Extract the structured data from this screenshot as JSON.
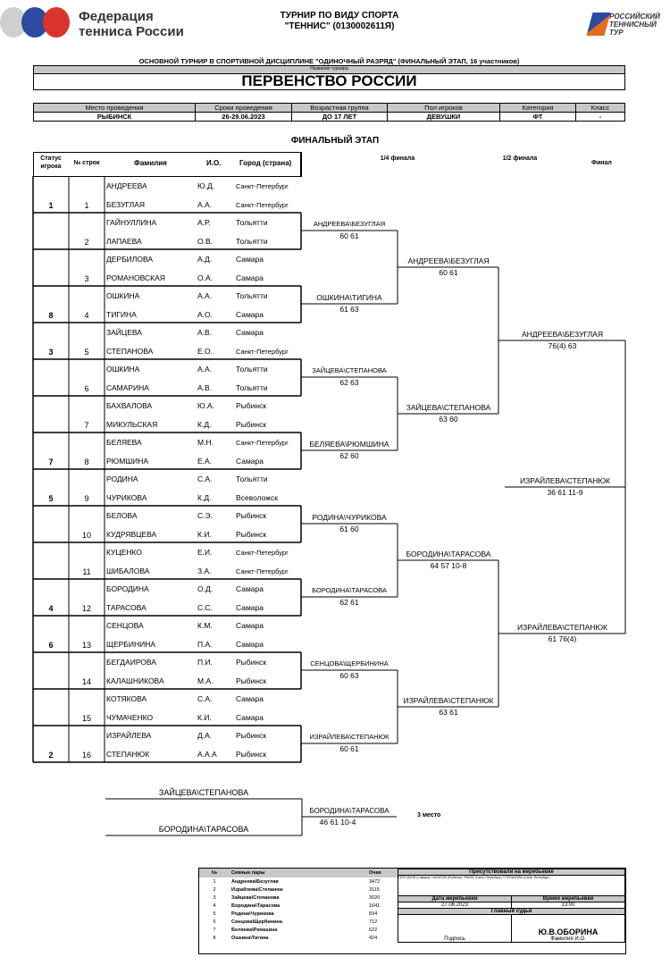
{
  "header": {
    "federation": [
      "Федерация",
      "тенниса России"
    ],
    "title_line1": "ТУРНИР ПО ВИДУ СПОРТА",
    "title_line2": "\"ТЕННИС\" (0130002611Я)",
    "rtt_logo": [
      "РОССИЙСКИЙ",
      "ТЕННИСНЫЙ",
      "ТУР"
    ]
  },
  "subtitle": "ОСНОВНОЙ ТУРНИР В СПОРТИВНОЙ ДИСЦИПЛИНЕ \"ОДИНОЧНЫЙ РАЗРЯД\" (ФИНАЛЬНЫЙ ЭТАП, 16 участников)",
  "tournament_name_label": "Название турнира",
  "tournament_name": "ПЕРВЕНСТВО РОССИИ",
  "info": {
    "headers": [
      "Место проведения",
      "Сроки проведения",
      "Возрастная группа",
      "Пол игроков",
      "Категория",
      "Класс"
    ],
    "values": [
      "РЫБИНСК",
      "26-29.06.2023",
      "ДО 17 ЛЕТ",
      "ДЕВУШКИ",
      "ФТ",
      "-"
    ]
  },
  "stage_title": "ФИНАЛЬНЫЙ ЭТАП",
  "columns": {
    "status": "Статус игрока",
    "row": "№ строк",
    "surname": "Фамилия",
    "initials": "И.О.",
    "city": "Город (страна)",
    "r16": "1/4 финала",
    "sf": "1/2 финала",
    "final": "Финал"
  },
  "pairs": [
    {
      "status": "1",
      "num": "1",
      "p": [
        [
          "АНДРЕЕВА",
          "Ю.Д.",
          "Санкт-Петербург"
        ],
        [
          "БЕЗУГЛАЯ",
          "А.А.",
          "Санкт-Петербург"
        ]
      ]
    },
    {
      "status": "",
      "num": "2",
      "p": [
        [
          "ГАЙНУЛЛИНА",
          "А.Р.",
          "Тольятти"
        ],
        [
          "ЛАПАЕВА",
          "О.В.",
          "Тольятти"
        ]
      ]
    },
    {
      "status": "",
      "num": "3",
      "p": [
        [
          "ДЕРБИЛОВА",
          "А.Д.",
          "Самара"
        ],
        [
          "РОМАНОВСКАЯ",
          "О.А.",
          "Самара"
        ]
      ]
    },
    {
      "status": "8",
      "num": "4",
      "p": [
        [
          "ОШКИНА",
          "А.А.",
          "Тольятти"
        ],
        [
          "ТИГИНА",
          "А.О.",
          "Самара"
        ]
      ]
    },
    {
      "status": "3",
      "num": "5",
      "p": [
        [
          "ЗАЙЦЕВА",
          "А.В.",
          "Самара"
        ],
        [
          "СТЕПАНОВА",
          "Е.О.",
          "Санкт-Петербург"
        ]
      ]
    },
    {
      "status": "",
      "num": "6",
      "p": [
        [
          "ОШКИНА",
          "А.А.",
          "Тольятти"
        ],
        [
          "САМАРИНА",
          "А.В.",
          "Тольятти"
        ]
      ]
    },
    {
      "status": "",
      "num": "7",
      "p": [
        [
          "БАХВАЛОВА",
          "Ю.А.",
          "Рыбинск"
        ],
        [
          "МИКУЛЬСКАЯ",
          "К.Д.",
          "Рыбинск"
        ]
      ]
    },
    {
      "status": "7",
      "num": "8",
      "p": [
        [
          "БЕЛЯЕВА",
          "М.Н.",
          "Санкт-Петербург"
        ],
        [
          "РЮМШИНА",
          "Е.А.",
          "Самара"
        ]
      ]
    },
    {
      "status": "5",
      "num": "9",
      "p": [
        [
          "РОДИНА",
          "С.А.",
          "Тольятти"
        ],
        [
          "ЧУРИКОВА",
          "К.Д.",
          "Всеволожск"
        ]
      ]
    },
    {
      "status": "",
      "num": "10",
      "p": [
        [
          "БЕЛОВА",
          "С.Э.",
          "Рыбинск"
        ],
        [
          "КУДРЯВЦЕВА",
          "К.И.",
          "Рыбинск"
        ]
      ]
    },
    {
      "status": "",
      "num": "11",
      "p": [
        [
          "КУЦЕНКО",
          "Е.И.",
          "Санкт-Петербург"
        ],
        [
          "ШИБАЛОВА",
          "З.А.",
          "Санкт-Петербург"
        ]
      ]
    },
    {
      "status": "4",
      "num": "12",
      "p": [
        [
          "БОРОДИНА",
          "О.Д.",
          "Самара"
        ],
        [
          "ТАРАСОВА",
          "С.С.",
          "Самара"
        ]
      ]
    },
    {
      "status": "6",
      "num": "13",
      "p": [
        [
          "СЕНЦОВА",
          "К.М.",
          "Самара"
        ],
        [
          "ЩЕРБИНИНА",
          "П.А.",
          "Самара"
        ]
      ]
    },
    {
      "status": "",
      "num": "14",
      "p": [
        [
          "БЕГДАИРОВА",
          "П.И.",
          "Рыбинск"
        ],
        [
          "КАЛАШНИКОВА",
          "М.А.",
          "Рыбинск"
        ]
      ]
    },
    {
      "status": "",
      "num": "15",
      "p": [
        [
          "КОТЯКОВА",
          "С.А.",
          "Самара"
        ],
        [
          "ЧУМАЧЕНКО",
          "К.И.",
          "Самара"
        ]
      ]
    },
    {
      "status": "2",
      "num": "16",
      "p": [
        [
          "ИЗРАЙЛЕВА",
          "Д.А.",
          "Рыбинск"
        ],
        [
          "СТЕПАНЮК",
          "А.А.А",
          "Рыбинск"
        ]
      ]
    }
  ],
  "qf": [
    {
      "w": "АНДРЕЕВА\\БЕЗУГЛАЯ",
      "s": "60 61"
    },
    {
      "w": "ОШКИНА\\ТИГИНА",
      "s": "61 63"
    },
    {
      "w": "ЗАЙЦЕВА\\СТЕПАНОВА",
      "s": "62 63"
    },
    {
      "w": "БЕЛЯЕВА\\РЮМШИНА",
      "s": "62 60"
    },
    {
      "w": "РОДИНА\\ЧУРИКОВА",
      "s": "61 60"
    },
    {
      "w": "БОРОДИНА\\ТАРАСОВА",
      "s": "62 61"
    },
    {
      "w": "СЕНЦОВА\\ЩЕРБИНИНА",
      "s": "60 63"
    },
    {
      "w": "ИЗРАЙЛЕВА\\СТЕПАНЮК",
      "s": "60 61"
    }
  ],
  "sf": [
    {
      "w": "АНДРЕЕВА\\БЕЗУГЛАЯ",
      "s": "60 61"
    },
    {
      "w": "ЗАЙЦЕВА\\СТЕПАНОВА",
      "s": "63 60"
    },
    {
      "w": "БОРОДИНА\\ТАРАСОВА",
      "s": "64 57 10-8"
    },
    {
      "w": "ИЗРАЙЛЕВА\\СТЕПАНЮК",
      "s": "63 61"
    }
  ],
  "f": [
    {
      "w": "АНДРЕЕВА\\БЕЗУГЛАЯ",
      "s": "76(4) 63"
    },
    {
      "w": "ИЗРАЙЛЕВА\\СТЕПАНЮК",
      "s": "61 76(4)"
    }
  ],
  "champion": {
    "w": "ИЗРАЙЛЕВА\\СТЕПАНЮК",
    "s": "36 61 11-9"
  },
  "third_place": {
    "p1": "ЗАЙЦЕВА\\СТЕПАНОВА",
    "p2": "БОРОДИНА\\ТАРАСОВА",
    "w": "БОРОДИНА\\ТАРАСОВА",
    "s": "46 61 10-4",
    "label": "3 место"
  },
  "seeds": {
    "headers": [
      "№",
      "Сеяные пары",
      "Очки"
    ],
    "rows": [
      [
        "1",
        "Андреева\\Безуглая",
        "3472"
      ],
      [
        "2",
        "Израйлева\\Степанюк",
        "3115"
      ],
      [
        "3",
        "Зайцева\\Степанова",
        "3020"
      ],
      [
        "4",
        "Бородина\\Тарасова",
        "1641"
      ],
      [
        "5",
        "Родина\\Чурикова",
        "834"
      ],
      [
        "6",
        "Сенцова\\Щербинина",
        "712"
      ],
      [
        "7",
        "Беляева\\Рюмшина",
        "622"
      ],
      [
        "8",
        "Ошкина\\Тигина",
        "424"
      ]
    ]
  },
  "draw": {
    "present_label": "Присутствовали на жеребьевке",
    "present": "ПЕРСИКОВ (Самара), НАЗАРОВ (Рыбинск), РАКОВ (Санкт-Петербург), СТЕПАНОВА (Санкт-Петербург)",
    "date_label": "Дата жеребьевки",
    "time_label": "Время жеребьевки",
    "date": "27.06.2023",
    "time": "13:00",
    "judge_label": "Главный судья",
    "judge": "Ю.В.ОБОРИНА",
    "signature_label": "Подпись",
    "name_label": "Фамилия И.О."
  }
}
